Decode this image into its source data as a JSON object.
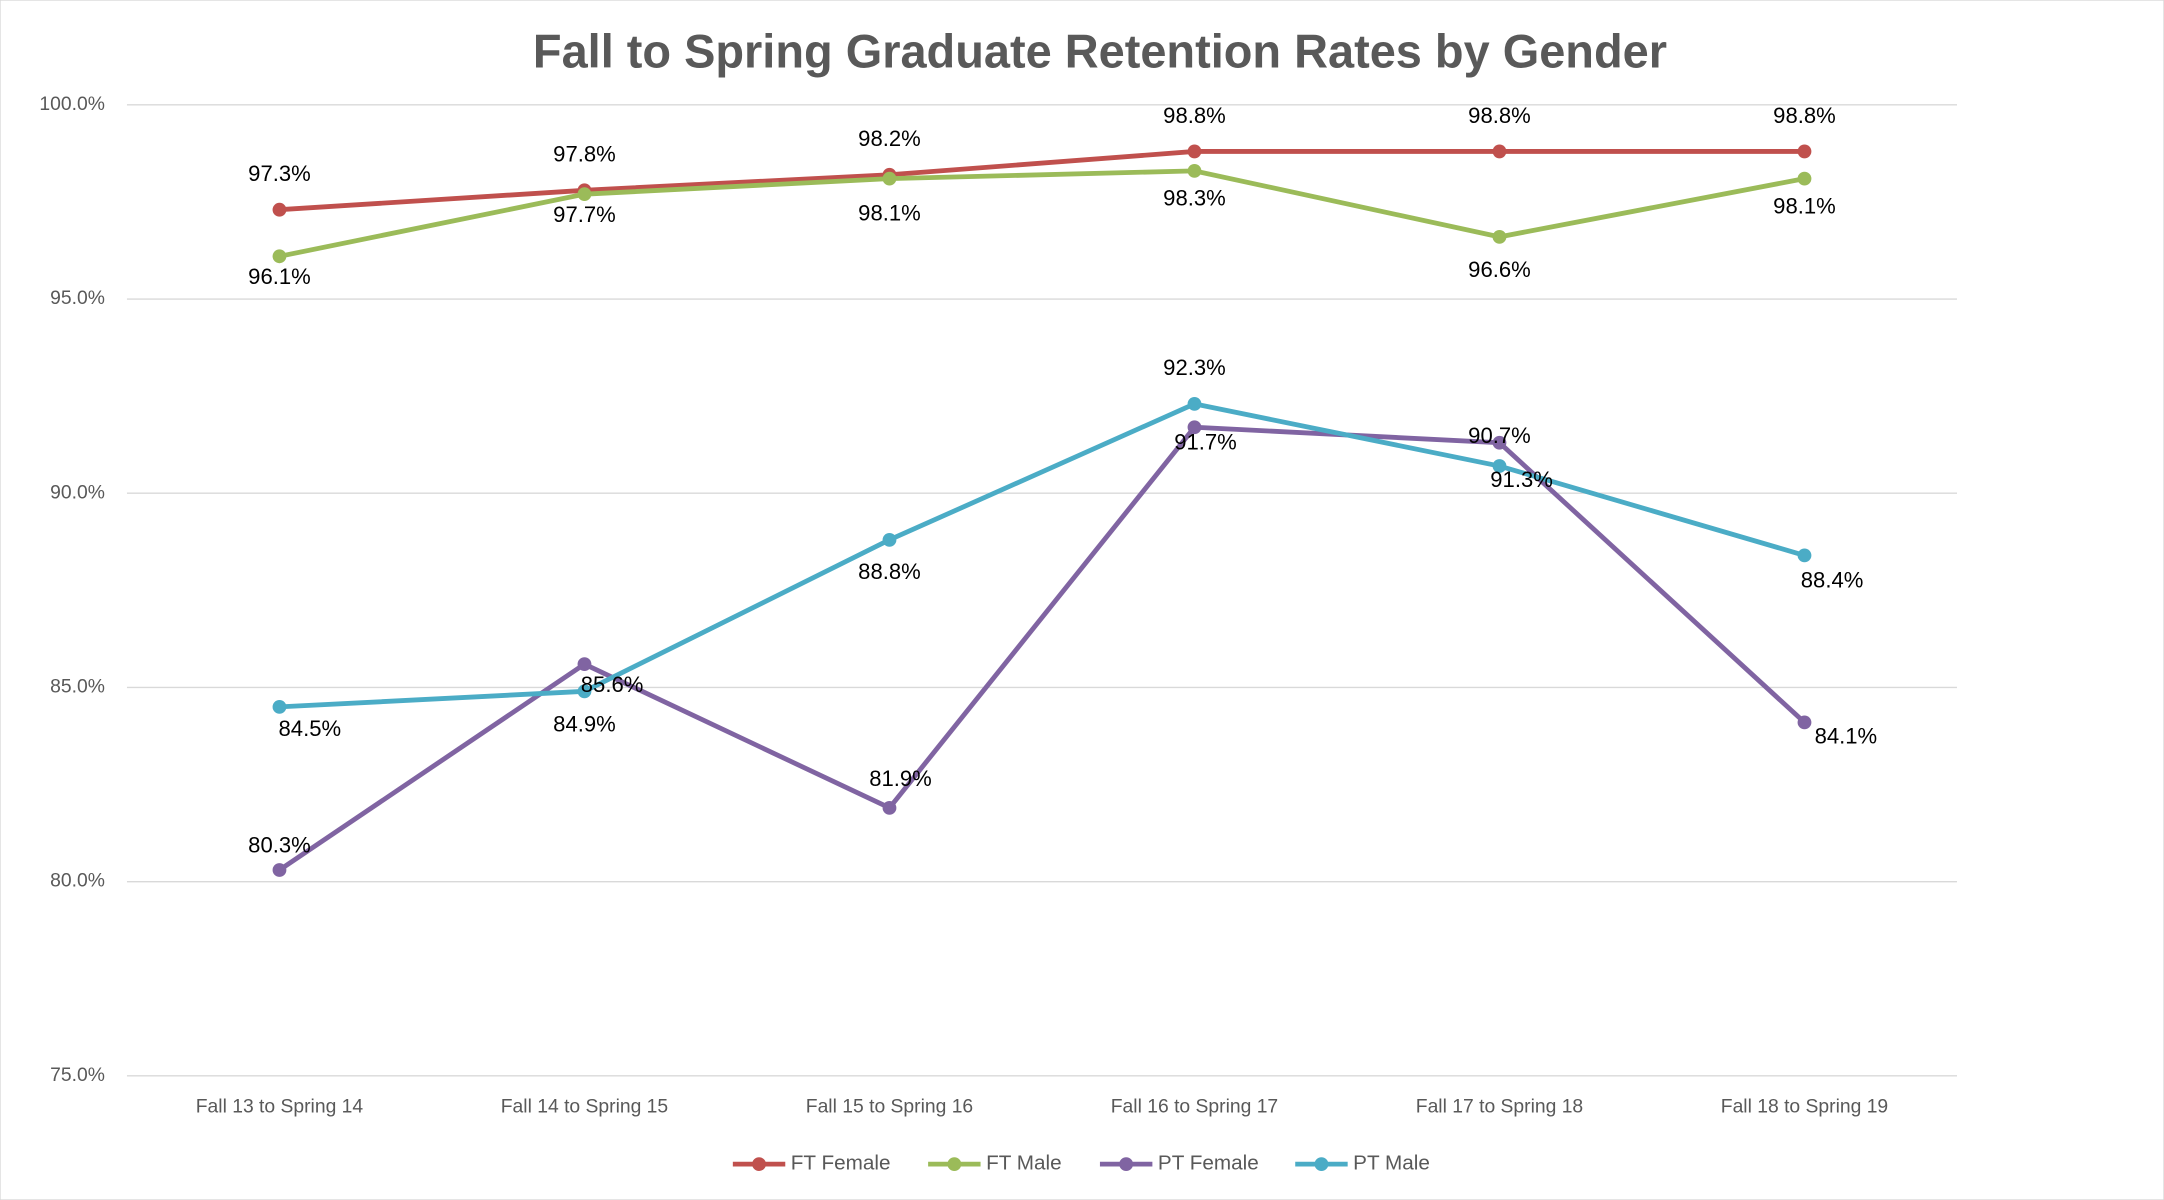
{
  "chart_data": {
    "type": "line",
    "title": "Fall to Spring Graduate Retention Rates by Gender",
    "categories": [
      "Fall 13 to Spring 14",
      "Fall 14 to Spring 15",
      "Fall 15 to Spring 16",
      "Fall 16 to Spring 17",
      "Fall 17 to Spring 18",
      "Fall 18 to Spring 19"
    ],
    "series": [
      {
        "name": "FT Female",
        "color": "#c0504d",
        "values": [
          97.3,
          97.8,
          98.2,
          98.8,
          98.8,
          98.8
        ],
        "value_labels": [
          "97.3%",
          "97.8%",
          "98.2%",
          "98.8%",
          "98.8%",
          "98.8%"
        ]
      },
      {
        "name": "FT Male",
        "color": "#9bbb59",
        "values": [
          96.1,
          97.7,
          98.1,
          98.3,
          96.6,
          98.1
        ],
        "value_labels": [
          "96.1%",
          "97.7%",
          "98.1%",
          "98.3%",
          "96.6%",
          "98.1%"
        ]
      },
      {
        "name": "PT Female",
        "color": "#8064a2",
        "values": [
          80.3,
          85.6,
          81.9,
          91.7,
          91.3,
          84.1
        ],
        "value_labels": [
          "80.3%",
          "85.6%",
          "81.9%",
          "91.7%",
          "91.3%",
          "84.1%"
        ]
      },
      {
        "name": "PT Male",
        "color": "#4bacc6",
        "values": [
          84.5,
          84.9,
          88.8,
          92.3,
          90.7,
          88.4
        ],
        "value_labels": [
          "84.5%",
          "84.9%",
          "88.8%",
          "92.3%",
          "90.7%",
          "88.4%"
        ]
      }
    ],
    "ylim": [
      75,
      100
    ],
    "yticks": [
      {
        "value": 75,
        "label": "75.0%"
      },
      {
        "value": 80,
        "label": "80.0%"
      },
      {
        "value": 85,
        "label": "85.0%"
      },
      {
        "value": 90,
        "label": "90.0%"
      },
      {
        "value": 95,
        "label": "95.0%"
      },
      {
        "value": 100,
        "label": "100.0%"
      }
    ],
    "grid": true,
    "legend": "bottom"
  }
}
